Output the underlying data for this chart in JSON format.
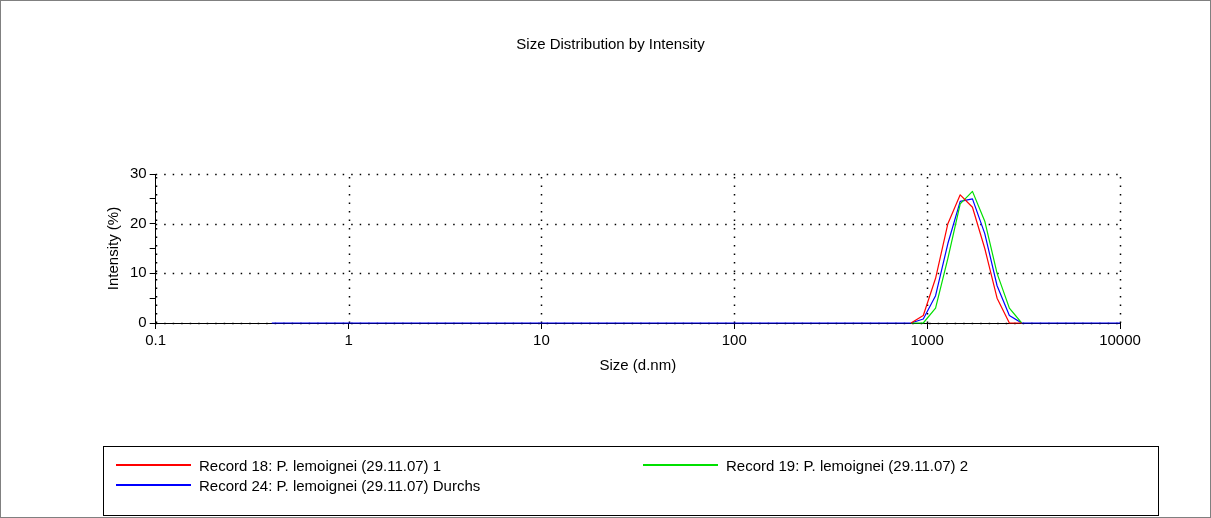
{
  "chart_data": {
    "type": "line",
    "title": "Size Distribution by Intensity",
    "xlabel": "Size (d.nm)",
    "ylabel": "Intensity (%)",
    "log": "x",
    "xlim": [
      0.1,
      10000
    ],
    "xticks": [
      0.1,
      1,
      10,
      100,
      1000,
      10000
    ],
    "ylim": [
      0,
      30
    ],
    "yticks": [
      0,
      {
        "value": 5,
        "label": null
      },
      10,
      {
        "value": 15,
        "label": null
      },
      20,
      {
        "value": 25,
        "label": null
      },
      30
    ],
    "grid": true,
    "legend": "bottom",
    "marker": "none",
    "line_style": "solid",
    "x": [
      0.4,
      825,
      955,
      1106,
      1281,
      1484,
      1718,
      1990,
      2305,
      2669,
      3091,
      10000
    ],
    "series": [
      {
        "name": "Record 18: P. lemoignei (29.11.07) 1",
        "color": "#ff0000",
        "values": [
          null,
          0,
          1.5,
          9,
          20,
          25.8,
          23.3,
          15,
          5,
          0,
          0,
          null
        ]
      },
      {
        "name": "Record 19: P. lemoignei (29.11.07) 2",
        "color": "#00e000",
        "values": [
          null,
          0,
          0,
          3,
          13,
          24,
          26.5,
          20.5,
          10,
          3,
          0,
          null
        ]
      },
      {
        "name": "Record 24: P. lemoignei (29.11.07) Durchs",
        "color": "#0000ff",
        "values": [
          0,
          0,
          0.8,
          5.5,
          16,
          24.5,
          25,
          18,
          7.5,
          1.5,
          0,
          0
        ]
      }
    ]
  }
}
